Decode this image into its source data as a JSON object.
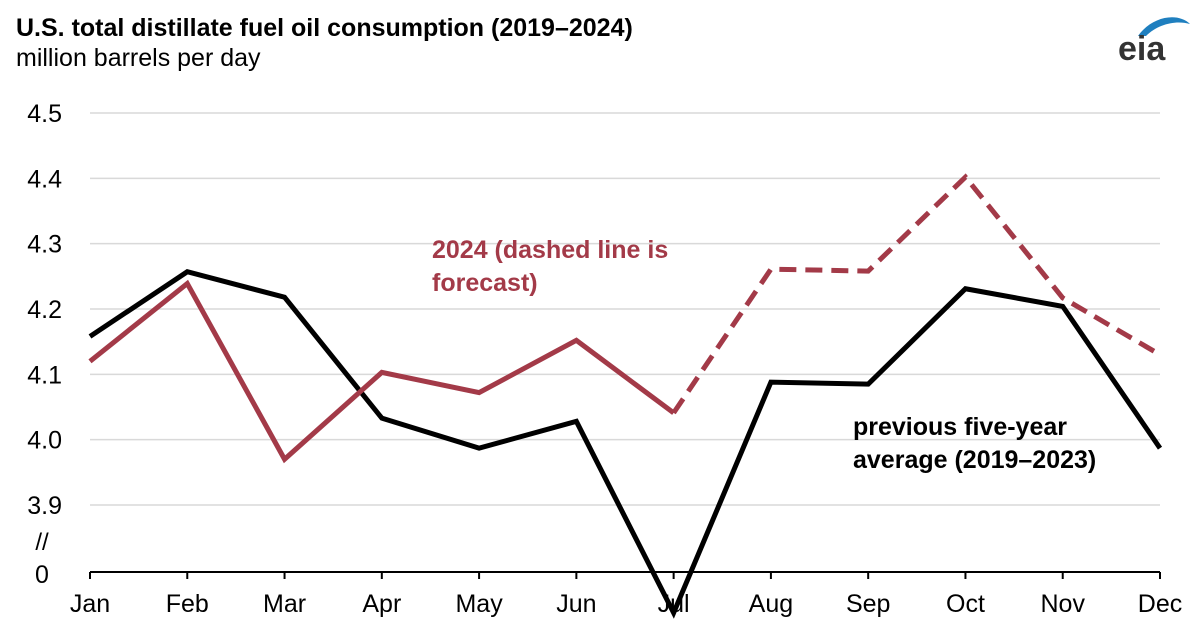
{
  "title": "U.S. total distillate fuel oil consumption (2019–2024)",
  "subtitle": "million barrels per day",
  "logo_text": "eia",
  "chart_data": {
    "type": "line",
    "categories": [
      "Jan",
      "Feb",
      "Mar",
      "Apr",
      "May",
      "Jun",
      "Jul",
      "Aug",
      "Sep",
      "Oct",
      "Nov",
      "Dec"
    ],
    "ylim": [
      3.9,
      4.5
    ],
    "yticks": [
      "4.5",
      "4.4",
      "4.3",
      "4.2",
      "4.1",
      "4.0",
      "3.9"
    ],
    "axis_break": {
      "symbol": "//",
      "zero_label": "0",
      "below_axis_value": 3.735
    },
    "grid": true,
    "series": [
      {
        "name": "previous five-year average (2019–2023)",
        "label_lines": [
          "previous five-year",
          "average (2019–2023)"
        ],
        "color": "#000000",
        "style": "solid",
        "values": [
          4.158,
          4.257,
          4.218,
          4.033,
          3.987,
          4.028,
          3.735,
          4.088,
          4.085,
          4.231,
          4.204,
          3.987
        ]
      },
      {
        "name": "2024 (dashed line is forecast)",
        "label_lines": [
          "2024 (dashed line is",
          "forecast)"
        ],
        "color": "#a33a48",
        "style": "solid-then-dashed",
        "forecast_start": "Jul",
        "values": [
          4.12,
          4.239,
          3.97,
          4.103,
          4.072,
          4.152,
          4.041,
          4.261,
          4.258,
          4.402,
          4.217,
          4.13
        ]
      }
    ]
  }
}
